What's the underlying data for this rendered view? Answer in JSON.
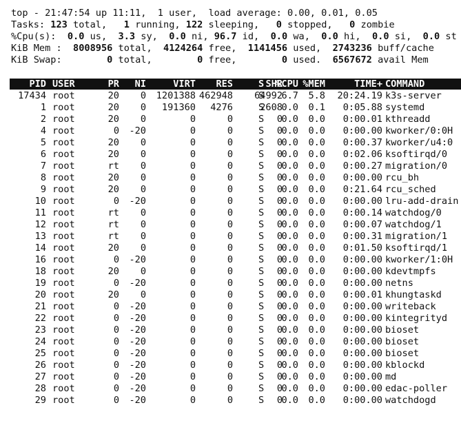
{
  "summary": {
    "uptime_line": "top - 21:47:54 up 11:11,  1 user,  load average: 0.00, 0.01, 0.05",
    "tasks": {
      "label": "Tasks:",
      "total": "123",
      "total_label": "total,",
      "running": "1",
      "running_label": "running,",
      "sleeping": "122",
      "sleeping_label": "sleeping,",
      "stopped": "0",
      "stopped_label": "stopped,",
      "zombie": "0",
      "zombie_label": "zombie"
    },
    "cpu": {
      "label": "%Cpu(s):",
      "us": "0.0",
      "us_label": "us,",
      "sy": "3.3",
      "sy_label": "sy,",
      "ni": "0.0",
      "ni_label": "ni,",
      "id": "96.7",
      "id_label": "id,",
      "wa": "0.0",
      "wa_label": "wa,",
      "hi": "0.0",
      "hi_label": "hi,",
      "si": "0.0",
      "si_label": "si,",
      "st": "0.0",
      "st_label": "st"
    },
    "mem": {
      "label": "KiB Mem :",
      "total": "8008956",
      "total_label": "total,",
      "free": "4124264",
      "free_label": "free,",
      "used": "1141456",
      "used_label": "used,",
      "buff": "2743236",
      "buff_label": "buff/cache"
    },
    "swap": {
      "label": "KiB Swap:",
      "total": "0",
      "total_label": "total,",
      "free": "0",
      "free_label": "free,",
      "used": "0",
      "used_label": "used.",
      "avail": "6567672",
      "avail_label": "avail Mem"
    }
  },
  "table": {
    "headers": {
      "pid": "PID",
      "user": "USER",
      "pr": "PR",
      "ni": "NI",
      "virt": "VIRT",
      "res": "RES",
      "shr": "SHR",
      "s": "S",
      "cpu": "%CPU",
      "mem": "%MEM",
      "time": "TIME+",
      "cmd": "COMMAND"
    },
    "rows": [
      [
        "17434",
        "root",
        "20",
        "0",
        "1201388",
        "462948",
        "64992",
        "S",
        "6.7",
        "5.8",
        "20:24.19",
        "k3s-server"
      ],
      [
        "1",
        "root",
        "20",
        "0",
        "191360",
        "4276",
        "2608",
        "S",
        "0.0",
        "0.1",
        "0:05.88",
        "systemd"
      ],
      [
        "2",
        "root",
        "20",
        "0",
        "0",
        "0",
        "0",
        "S",
        "0.0",
        "0.0",
        "0:00.01",
        "kthreadd"
      ],
      [
        "4",
        "root",
        "0",
        "-20",
        "0",
        "0",
        "0",
        "S",
        "0.0",
        "0.0",
        "0:00.00",
        "kworker/0:0H"
      ],
      [
        "5",
        "root",
        "20",
        "0",
        "0",
        "0",
        "0",
        "S",
        "0.0",
        "0.0",
        "0:00.37",
        "kworker/u4:0"
      ],
      [
        "6",
        "root",
        "20",
        "0",
        "0",
        "0",
        "0",
        "S",
        "0.0",
        "0.0",
        "0:02.06",
        "ksoftirqd/0"
      ],
      [
        "7",
        "root",
        "rt",
        "0",
        "0",
        "0",
        "0",
        "S",
        "0.0",
        "0.0",
        "0:00.27",
        "migration/0"
      ],
      [
        "8",
        "root",
        "20",
        "0",
        "0",
        "0",
        "0",
        "S",
        "0.0",
        "0.0",
        "0:00.00",
        "rcu_bh"
      ],
      [
        "9",
        "root",
        "20",
        "0",
        "0",
        "0",
        "0",
        "S",
        "0.0",
        "0.0",
        "0:21.64",
        "rcu_sched"
      ],
      [
        "10",
        "root",
        "0",
        "-20",
        "0",
        "0",
        "0",
        "S",
        "0.0",
        "0.0",
        "0:00.00",
        "lru-add-drain"
      ],
      [
        "11",
        "root",
        "rt",
        "0",
        "0",
        "0",
        "0",
        "S",
        "0.0",
        "0.0",
        "0:00.14",
        "watchdog/0"
      ],
      [
        "12",
        "root",
        "rt",
        "0",
        "0",
        "0",
        "0",
        "S",
        "0.0",
        "0.0",
        "0:00.07",
        "watchdog/1"
      ],
      [
        "13",
        "root",
        "rt",
        "0",
        "0",
        "0",
        "0",
        "S",
        "0.0",
        "0.0",
        "0:00.31",
        "migration/1"
      ],
      [
        "14",
        "root",
        "20",
        "0",
        "0",
        "0",
        "0",
        "S",
        "0.0",
        "0.0",
        "0:01.50",
        "ksoftirqd/1"
      ],
      [
        "16",
        "root",
        "0",
        "-20",
        "0",
        "0",
        "0",
        "S",
        "0.0",
        "0.0",
        "0:00.00",
        "kworker/1:0H"
      ],
      [
        "18",
        "root",
        "20",
        "0",
        "0",
        "0",
        "0",
        "S",
        "0.0",
        "0.0",
        "0:00.00",
        "kdevtmpfs"
      ],
      [
        "19",
        "root",
        "0",
        "-20",
        "0",
        "0",
        "0",
        "S",
        "0.0",
        "0.0",
        "0:00.00",
        "netns"
      ],
      [
        "20",
        "root",
        "20",
        "0",
        "0",
        "0",
        "0",
        "S",
        "0.0",
        "0.0",
        "0:00.01",
        "khungtaskd"
      ],
      [
        "21",
        "root",
        "0",
        "-20",
        "0",
        "0",
        "0",
        "S",
        "0.0",
        "0.0",
        "0:00.00",
        "writeback"
      ],
      [
        "22",
        "root",
        "0",
        "-20",
        "0",
        "0",
        "0",
        "S",
        "0.0",
        "0.0",
        "0:00.00",
        "kintegrityd"
      ],
      [
        "23",
        "root",
        "0",
        "-20",
        "0",
        "0",
        "0",
        "S",
        "0.0",
        "0.0",
        "0:00.00",
        "bioset"
      ],
      [
        "24",
        "root",
        "0",
        "-20",
        "0",
        "0",
        "0",
        "S",
        "0.0",
        "0.0",
        "0:00.00",
        "bioset"
      ],
      [
        "25",
        "root",
        "0",
        "-20",
        "0",
        "0",
        "0",
        "S",
        "0.0",
        "0.0",
        "0:00.00",
        "bioset"
      ],
      [
        "26",
        "root",
        "0",
        "-20",
        "0",
        "0",
        "0",
        "S",
        "0.0",
        "0.0",
        "0:00.00",
        "kblockd"
      ],
      [
        "27",
        "root",
        "0",
        "-20",
        "0",
        "0",
        "0",
        "S",
        "0.0",
        "0.0",
        "0:00.00",
        "md"
      ],
      [
        "28",
        "root",
        "0",
        "-20",
        "0",
        "0",
        "0",
        "S",
        "0.0",
        "0.0",
        "0:00.00",
        "edac-poller"
      ],
      [
        "29",
        "root",
        "0",
        "-20",
        "0",
        "0",
        "0",
        "S",
        "0.0",
        "0.0",
        "0:00.00",
        "watchdogd"
      ]
    ]
  }
}
